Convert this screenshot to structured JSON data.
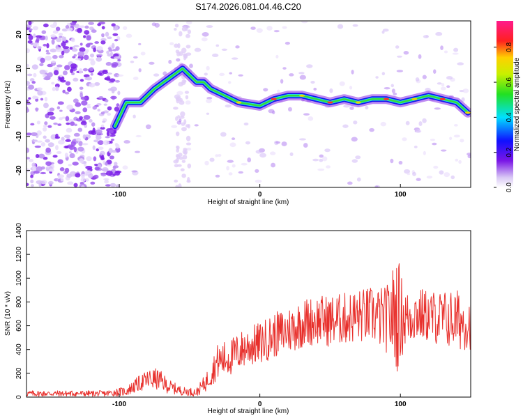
{
  "title": "S174.2026.081.04.46.C20",
  "colors": {
    "snr_line": "#e8302c",
    "axis": "#000000"
  },
  "chart_data": [
    {
      "type": "heatmap",
      "title": "S174.2026.081.04.46.C20",
      "xlabel": "Height of straight line (km)",
      "ylabel": "Frequency (Hz)",
      "xlim": [
        -166,
        150
      ],
      "ylim": [
        -25,
        24
      ],
      "xticks": [
        -100,
        0,
        100
      ],
      "xtick_labels": [
        "-100",
        "0",
        "100"
      ],
      "yticks": [
        20,
        10,
        0,
        -10,
        -20
      ],
      "ytick_labels": [
        "20",
        "10",
        "0",
        "-10",
        "-20"
      ],
      "colorbar": {
        "label": "Normalized spectral amplitude",
        "range": [
          0,
          0.95
        ],
        "ticks": [
          0.0,
          0.2,
          0.4,
          0.6,
          0.8
        ],
        "tick_labels": [
          "0.0",
          "0.2",
          "0.4",
          "0.6",
          "0.8"
        ],
        "colormap": "purple-blue-cyan-green-yellow-red-magenta"
      },
      "ridge_trace": {
        "x": [
          -103,
          -95,
          -85,
          -75,
          -65,
          -55,
          -45,
          -40,
          -35,
          -25,
          -15,
          0,
          10,
          20,
          30,
          40,
          50,
          60,
          70,
          80,
          90,
          100,
          110,
          120,
          130,
          140,
          148
        ],
        "y": [
          -7,
          0,
          0,
          4,
          7,
          10,
          6,
          6,
          4,
          2,
          0,
          -1,
          1,
          2,
          2,
          1,
          0,
          1,
          0,
          1,
          1,
          0,
          1,
          2,
          1,
          0,
          -3
        ]
      }
    },
    {
      "type": "line",
      "xlabel": "Height of straight line (km)",
      "ylabel": "SNR (10 * v/v)",
      "xlim": [
        -166,
        150
      ],
      "ylim": [
        0,
        1400
      ],
      "xticks": [
        -100,
        0,
        100
      ],
      "xtick_labels": [
        "-100",
        "0",
        "100"
      ],
      "yticks": [
        0,
        200,
        400,
        600,
        800,
        1000,
        1200,
        1400
      ],
      "ytick_labels": [
        "0",
        "200",
        "400",
        "600",
        "800",
        "1000",
        "1200",
        "1400"
      ],
      "series": [
        {
          "name": "SNR",
          "x": [
            -166,
            -140,
            -110,
            -95,
            -85,
            -78,
            -72,
            -65,
            -55,
            -45,
            -38,
            -30,
            -20,
            -10,
            0,
            10,
            20,
            30,
            40,
            50,
            60,
            70,
            80,
            90,
            95,
            98,
            100,
            105,
            110,
            120,
            130,
            140,
            150
          ],
          "y": [
            30,
            30,
            30,
            50,
            120,
            150,
            150,
            90,
            50,
            40,
            130,
            300,
            340,
            420,
            450,
            520,
            560,
            620,
            650,
            640,
            660,
            680,
            690,
            650,
            700,
            720,
            680,
            660,
            700,
            680,
            660,
            650,
            620
          ],
          "spread": [
            25,
            25,
            25,
            40,
            70,
            90,
            90,
            60,
            35,
            35,
            80,
            150,
            160,
            170,
            180,
            190,
            200,
            210,
            210,
            220,
            220,
            230,
            240,
            280,
            420,
            520,
            380,
            240,
            240,
            220,
            240,
            260,
            220
          ]
        }
      ]
    }
  ]
}
